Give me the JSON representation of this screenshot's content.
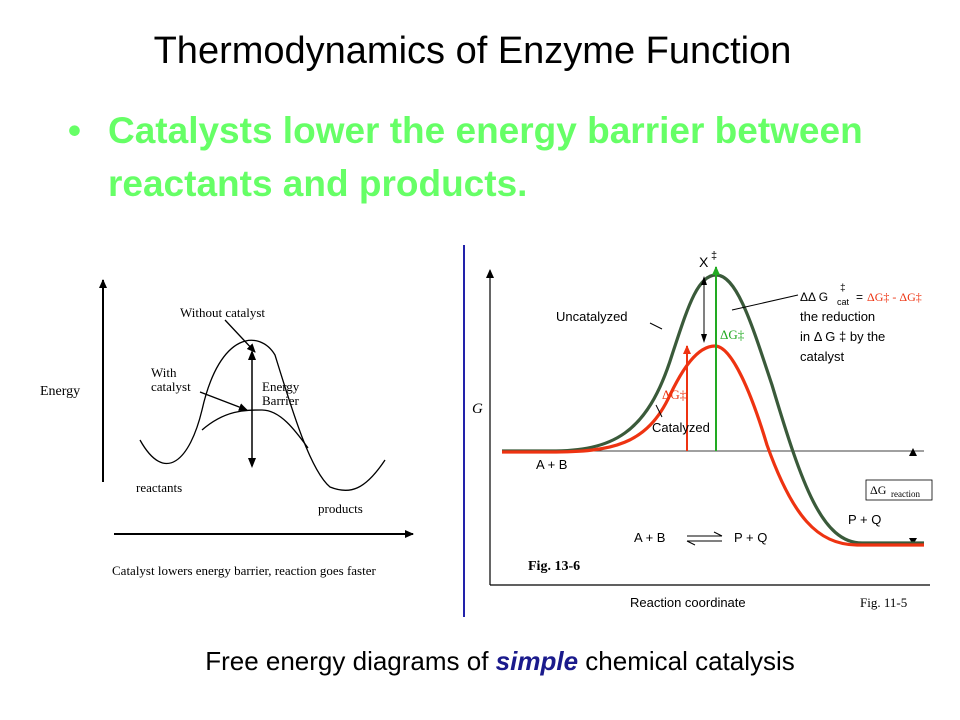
{
  "slide": {
    "title": "Thermodynamics of Enzyme Function",
    "bullet": "Catalysts lower the energy barrier between reactants and products.",
    "caption_before": "Free energy diagrams of ",
    "caption_emphasis": "simple",
    "caption_after": " chemical catalysis"
  },
  "left_diagram": {
    "y_axis_label": "Energy",
    "label_without_catalyst": "Without catalyst",
    "label_with_catalyst_line1": "With",
    "label_with_catalyst_line2": "catalyst",
    "label_barrier_line1": "Energy",
    "label_barrier_line2": "Barrier",
    "label_reactants": "reactants",
    "label_products": "products",
    "footer": "Catalyst lowers energy barrier, reaction goes faster"
  },
  "right_diagram": {
    "transition_state_label": "X",
    "transition_state_mark": "‡",
    "uncatalyzed_label": "Uncatalyzed",
    "catalyzed_label": "Catalyzed",
    "dg_uncat": "ΔG‡",
    "dg_cat": "ΔG‡",
    "ddg_line1_prefix": "ΔΔ G",
    "ddg_line1_sub": "cat",
    "ddg_line1_mark": "‡",
    "ddg_line1_eq": "=",
    "ddg_line1_expr": "ΔG‡ - ΔG‡",
    "ddg_line2": "the reduction",
    "ddg_line3": "in Δ G ‡ by the",
    "ddg_line4": "catalyst",
    "y_axis_label": "G",
    "reactants_label": "A + B",
    "products_label": "P + Q",
    "dg_reaction_label": "ΔG",
    "dg_reaction_sub": "reaction",
    "equilibrium_left": "A + B",
    "equilibrium_right": "P + Q",
    "fig_label_left": "Fig. 13-6",
    "fig_label_right": "Fig. 11-5",
    "x_axis_label": "Reaction coordinate",
    "colors": {
      "uncatalyzed": "#3a5a3a",
      "catalyzed": "#ee3311",
      "dg_arrow": "#22aa22"
    }
  }
}
